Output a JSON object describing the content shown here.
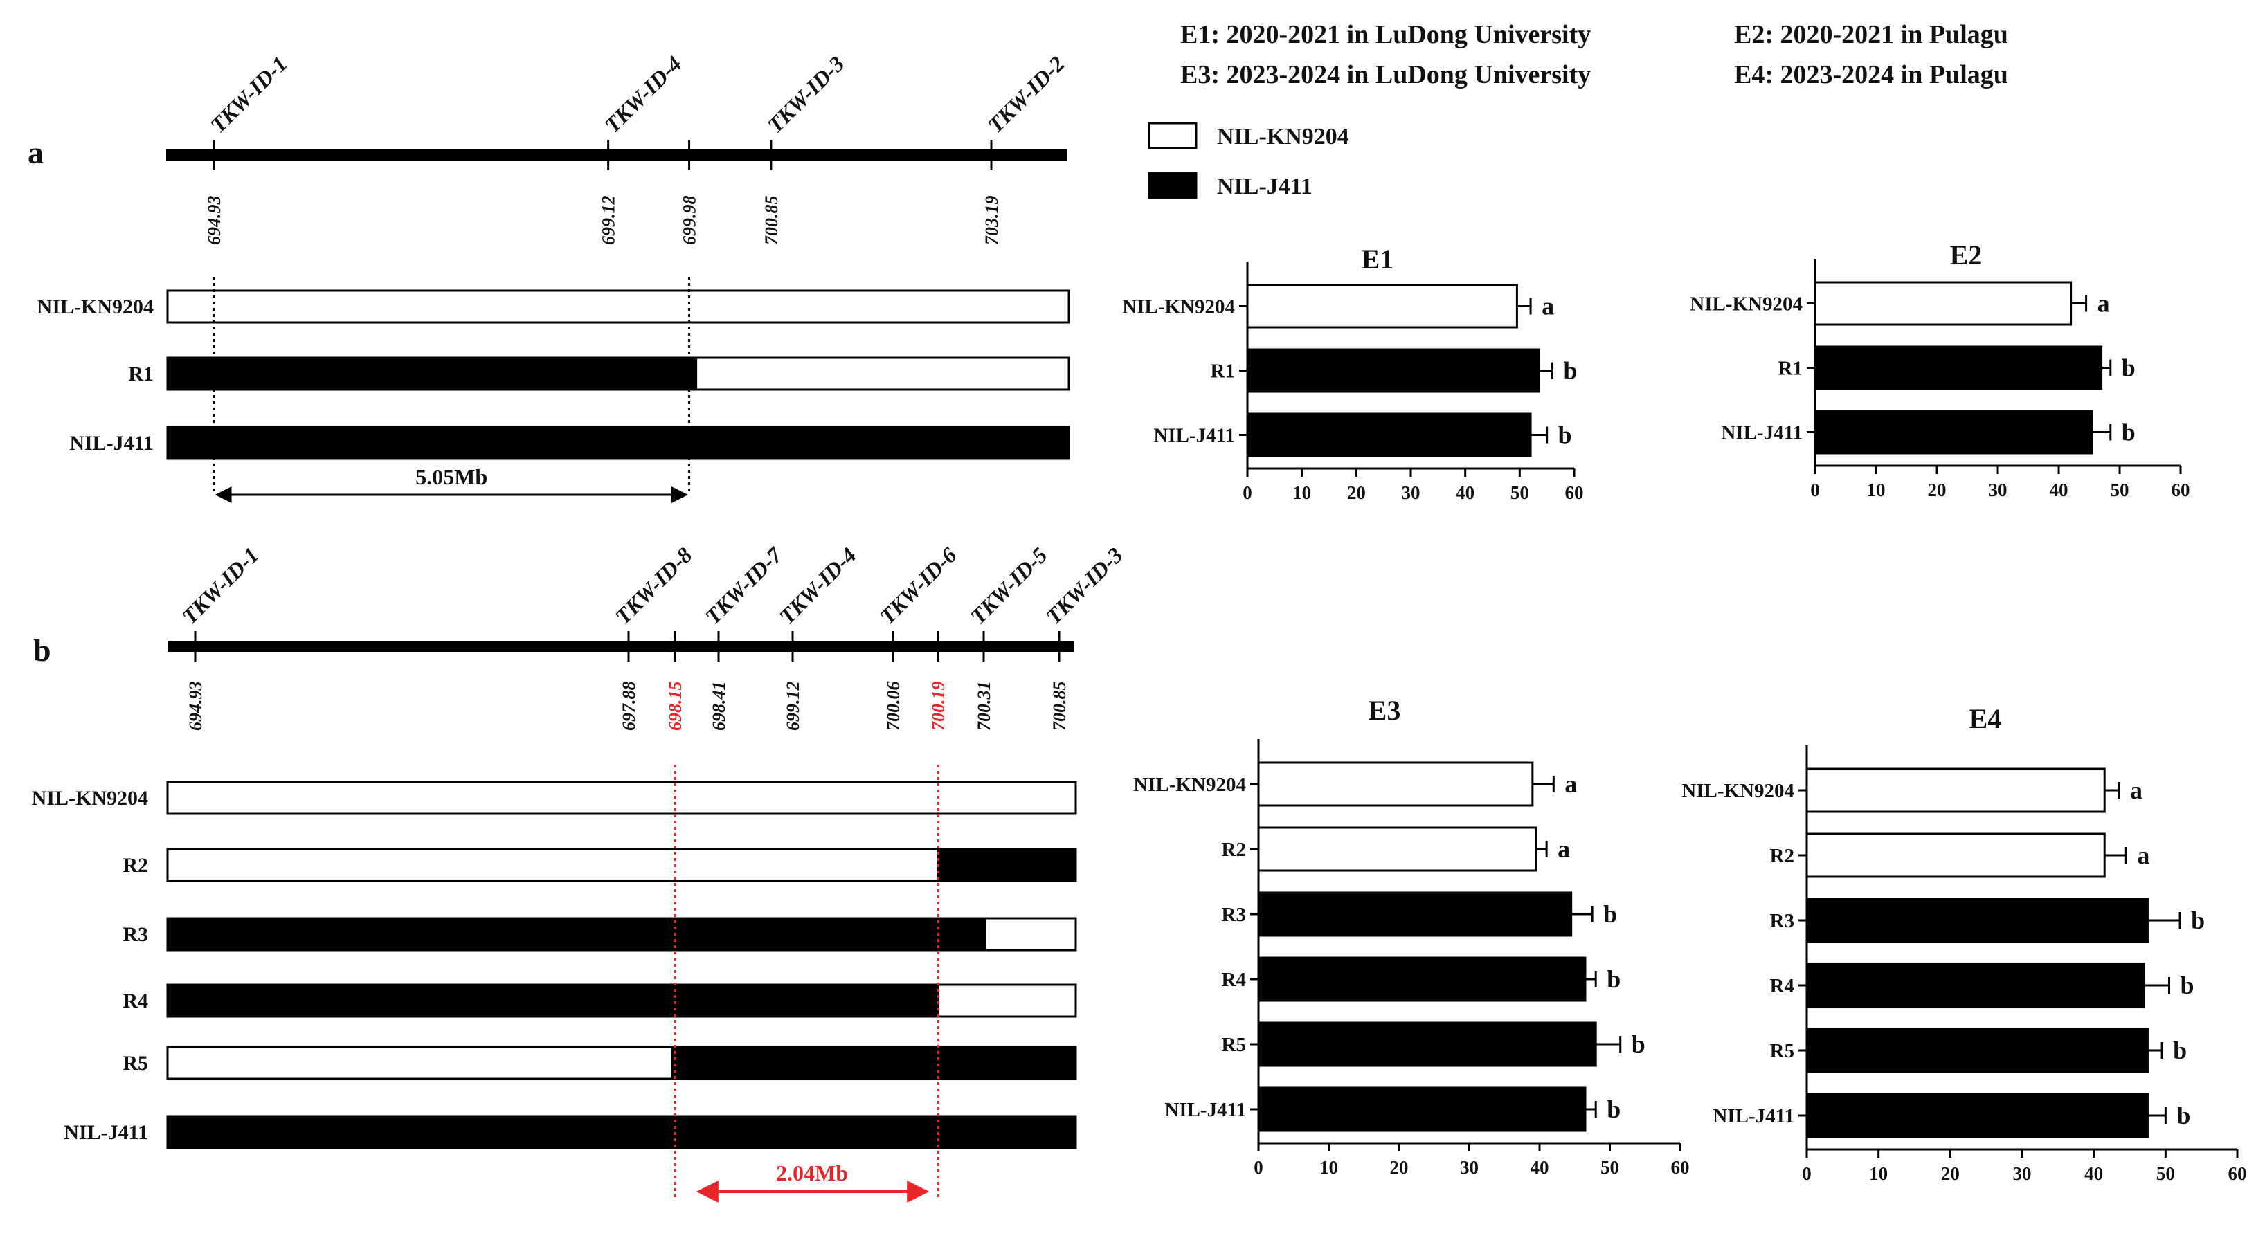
{
  "legend": {
    "env": [
      "E1: 2020-2021 in LuDong University",
      "E2: 2020-2021 in Pulagu",
      "E3: 2023-2024 in LuDong University",
      "E4: 2023-2024 in Pulagu"
    ],
    "series": [
      {
        "name": "NIL-KN9204",
        "fill": "#ffffff"
      },
      {
        "name": "NIL-J411",
        "fill": "#000000"
      }
    ]
  },
  "panel_a": {
    "label": "a",
    "markers": [
      {
        "name": "TKW-ID-1",
        "pos": "694.93",
        "value": 694.93
      },
      {
        "name": "TKW-ID-4",
        "pos": "699.12",
        "value": 699.12
      },
      {
        "name": "",
        "pos": "699.98",
        "value": 699.98
      },
      {
        "name": "TKW-ID-3",
        "pos": "700.85",
        "value": 700.85
      },
      {
        "name": "TKW-ID-2",
        "pos": "703.19",
        "value": 703.19
      }
    ],
    "rows": [
      {
        "label": "NIL-KN9204",
        "segments": [
          {
            "from": 0,
            "to": 1,
            "fill": "white"
          }
        ]
      },
      {
        "label": "R1",
        "segments": [
          {
            "from": 0,
            "to": 0.5865,
            "fill": "black"
          },
          {
            "from": 0.5865,
            "to": 1,
            "fill": "white"
          }
        ]
      },
      {
        "label": "NIL-J411",
        "segments": [
          {
            "from": 0,
            "to": 1,
            "fill": "black"
          }
        ]
      }
    ],
    "interval": {
      "label": "5.05Mb",
      "from": 694.93,
      "to": 699.98
    }
  },
  "panel_b": {
    "label": "b",
    "markers": [
      {
        "name": "TKW-ID-1",
        "pos": "694.93",
        "value": 694.93,
        "red": false
      },
      {
        "name": "TKW-ID-8",
        "pos": "697.88",
        "value": 697.88,
        "red": false
      },
      {
        "name": "",
        "pos": "698.15",
        "value": 698.15,
        "red": true
      },
      {
        "name": "TKW-ID-7",
        "pos": "698.41",
        "value": 698.41,
        "red": false
      },
      {
        "name": "TKW-ID-4",
        "pos": "699.12",
        "value": 699.12,
        "red": false
      },
      {
        "name": "TKW-ID-6",
        "pos": "700.06",
        "value": 700.06,
        "red": false
      },
      {
        "name": "",
        "pos": "700.19",
        "value": 700.19,
        "red": true
      },
      {
        "name": "TKW-ID-5",
        "pos": "700.31",
        "value": 700.31,
        "red": false
      },
      {
        "name": "TKW-ID-3",
        "pos": "700.85",
        "value": 700.85,
        "red": false
      }
    ],
    "rows": [
      {
        "label": "NIL-KN9204",
        "segments": [
          {
            "from": 0,
            "to": 1,
            "fill": "white"
          }
        ]
      },
      {
        "label": "R2",
        "segments": [
          {
            "from": 0,
            "to": 0.848,
            "fill": "white"
          },
          {
            "from": 0.848,
            "to": 1,
            "fill": "black"
          }
        ]
      },
      {
        "label": "R3",
        "segments": [
          {
            "from": 0,
            "to": 0.9,
            "fill": "black"
          },
          {
            "from": 0.9,
            "to": 1,
            "fill": "white"
          }
        ]
      },
      {
        "label": "R4",
        "segments": [
          {
            "from": 0,
            "to": 0.848,
            "fill": "black"
          },
          {
            "from": 0.848,
            "to": 1,
            "fill": "white"
          }
        ]
      },
      {
        "label": "R5",
        "segments": [
          {
            "from": 0,
            "to": 0.556,
            "fill": "white"
          },
          {
            "from": 0.556,
            "to": 1,
            "fill": "black"
          }
        ]
      },
      {
        "label": "NIL-J411",
        "segments": [
          {
            "from": 0,
            "to": 1,
            "fill": "black"
          }
        ]
      }
    ],
    "interval": {
      "label": "2.04Mb",
      "from": 698.15,
      "to": 700.19
    }
  },
  "chart_data": [
    {
      "type": "bar",
      "orientation": "horizontal",
      "title": "E1",
      "categories": [
        "NIL-KN9204",
        "R1",
        "NIL-J411"
      ],
      "values": [
        49.5,
        53.5,
        52
      ],
      "errors": [
        2.5,
        2.5,
        3
      ],
      "letters": [
        "a",
        "b",
        "b"
      ],
      "fills": [
        "white",
        "black",
        "black"
      ],
      "xlim": [
        0,
        60
      ],
      "xticks": [
        0,
        10,
        20,
        30,
        40,
        50,
        60
      ]
    },
    {
      "type": "bar",
      "orientation": "horizontal",
      "title": "E2",
      "categories": [
        "NIL-KN9204",
        "R1",
        "NIL-J411"
      ],
      "values": [
        42,
        47,
        45.5
      ],
      "errors": [
        2.5,
        1.5,
        3
      ],
      "letters": [
        "a",
        "b",
        "b"
      ],
      "fills": [
        "white",
        "black",
        "black"
      ],
      "xlim": [
        0,
        60
      ],
      "xticks": [
        0,
        10,
        20,
        30,
        40,
        50,
        60
      ]
    },
    {
      "type": "bar",
      "orientation": "horizontal",
      "title": "E3",
      "categories": [
        "NIL-KN9204",
        "R2",
        "R3",
        "R4",
        "R5",
        "NIL-J411"
      ],
      "values": [
        39,
        39.5,
        44.5,
        46.5,
        48,
        46.5
      ],
      "errors": [
        3,
        1.5,
        3,
        1.5,
        3.5,
        1.5
      ],
      "letters": [
        "a",
        "a",
        "b",
        "b",
        "b",
        "b"
      ],
      "fills": [
        "white",
        "white",
        "black",
        "black",
        "black",
        "black"
      ],
      "xlim": [
        0,
        60
      ],
      "xticks": [
        0,
        10,
        20,
        30,
        40,
        50,
        60
      ]
    },
    {
      "type": "bar",
      "orientation": "horizontal",
      "title": "E4",
      "categories": [
        "NIL-KN9204",
        "R2",
        "R3",
        "R4",
        "R5",
        "NIL-J411"
      ],
      "values": [
        41.5,
        41.5,
        47.5,
        47,
        47.5,
        47.5
      ],
      "errors": [
        2,
        3,
        4.5,
        3.5,
        2,
        2.5
      ],
      "letters": [
        "a",
        "a",
        "b",
        "b",
        "b",
        "b"
      ],
      "fills": [
        "white",
        "white",
        "black",
        "black",
        "black",
        "black"
      ],
      "xlim": [
        0,
        60
      ],
      "xticks": [
        0,
        10,
        20,
        30,
        40,
        50,
        60
      ]
    }
  ]
}
